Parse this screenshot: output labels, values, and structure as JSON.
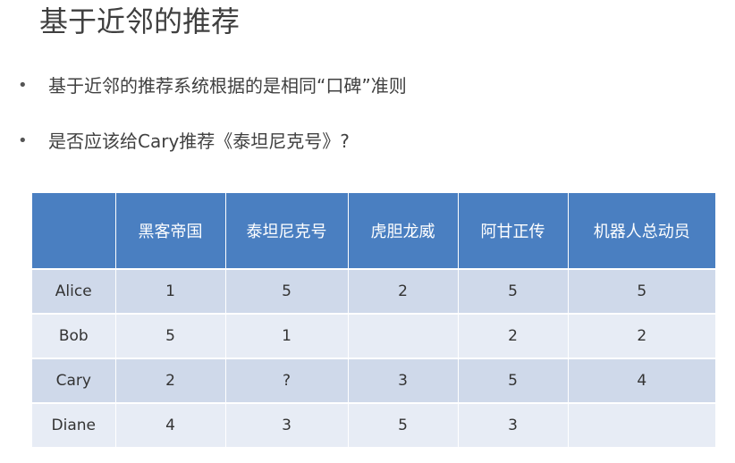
{
  "title": "基于近邻的推荐",
  "bullets": [
    {
      "marker": "•",
      "text": "基于近邻的推荐系统根据的是相同“口碑”准则"
    },
    {
      "marker": "•",
      "text": "是否应该给Cary推荐《泰坦尼克号》?"
    }
  ],
  "table": {
    "corner": "",
    "headers": [
      "黑客帝国",
      "泰坦尼克号",
      "虎胆龙威",
      "阿甘正传",
      "机器人总动员"
    ],
    "rows": [
      {
        "name": "Alice",
        "cells": [
          "1",
          "5",
          "2",
          "5",
          "5"
        ]
      },
      {
        "name": "Bob",
        "cells": [
          "5",
          "1",
          "",
          "2",
          "2"
        ]
      },
      {
        "name": "Cary",
        "cells": [
          "2",
          "?",
          "3",
          "5",
          "4"
        ]
      },
      {
        "name": "Diane",
        "cells": [
          "4",
          "3",
          "5",
          "3",
          ""
        ]
      }
    ]
  },
  "colors": {
    "header": "#4a7fc1",
    "row_dark": "#cfd9ea",
    "row_light": "#e7ecf5"
  }
}
